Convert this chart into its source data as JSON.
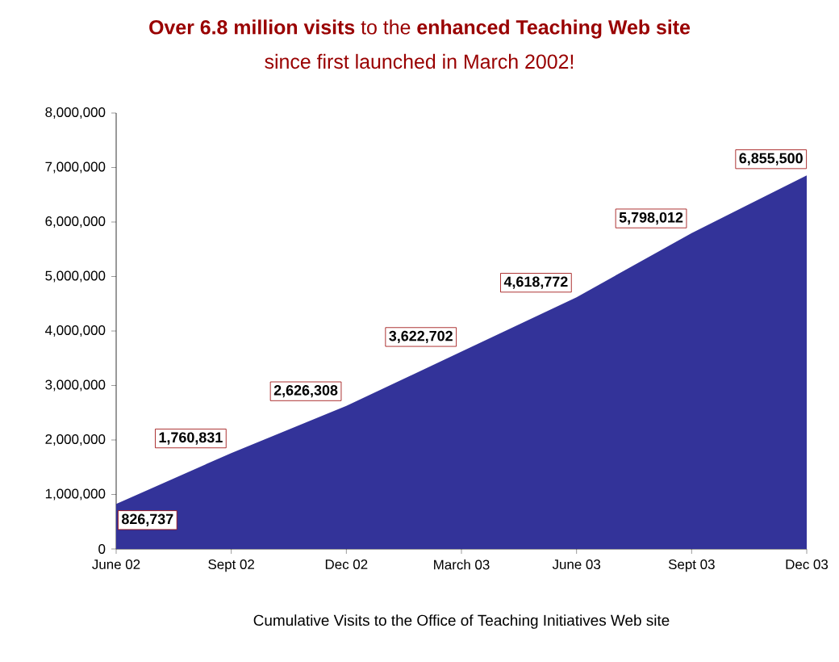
{
  "chart_data": {
    "type": "area",
    "title": "**Over 6.8 million visits** to the **enhanced Teaching Web site**",
    "subtitle": "since first launched in March 2002!",
    "xlabel": "Cumulative Visits to the Office of Teaching Initiatives Web site",
    "categories": [
      "June 02",
      "Sept 02",
      "Dec 02",
      "March 03",
      "June 03",
      "Sept 03",
      "Dec 03"
    ],
    "values": [
      826737,
      1760831,
      2626308,
      3622702,
      4618772,
      5798012,
      6855500
    ],
    "value_labels": [
      "826,737",
      "1,760,831",
      "2,626,308",
      "3,622,702",
      "4,618,772",
      "5,798,012",
      "6,855,500"
    ],
    "color": "#333399",
    "ylim": [
      0,
      8000000
    ],
    "yticks": [
      0,
      {
        "value": 1000000,
        "label": "1,000,000"
      },
      {
        "value": 2000000,
        "label": "2,000,000"
      },
      {
        "value": 3000000,
        "label": "3,000,000"
      },
      {
        "value": 4000000,
        "label": "4,000,000"
      },
      {
        "value": 5000000,
        "label": "5,000,000"
      },
      {
        "value": 6000000,
        "label": "6,000,000"
      },
      {
        "value": 7000000,
        "label": "7,000,000"
      },
      {
        "value": 8000000,
        "label": "8,000,000"
      }
    ]
  }
}
